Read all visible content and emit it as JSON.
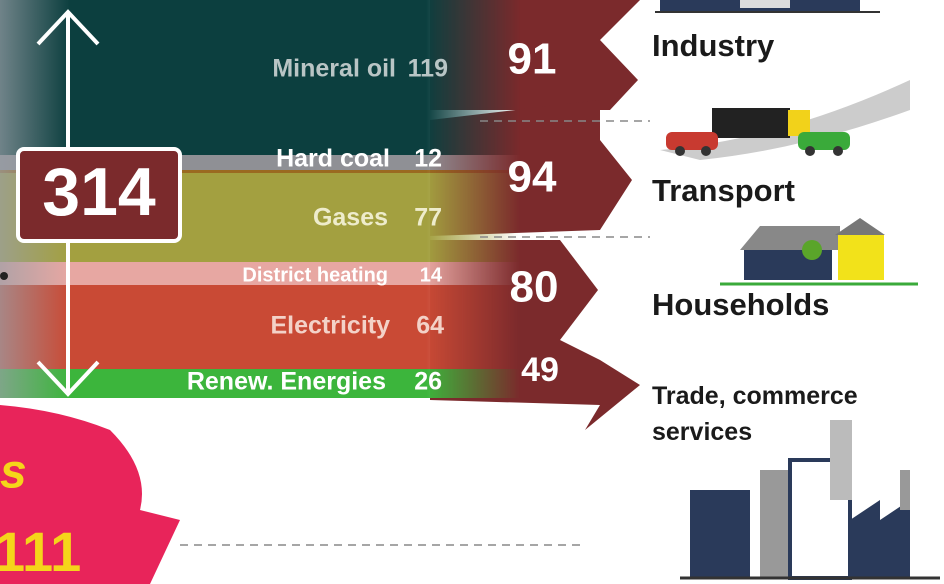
{
  "total": 314,
  "sources": [
    {
      "label": "Mineral oil",
      "value": 119
    },
    {
      "label": "Hard coal",
      "value": 12
    },
    {
      "label": "Gases",
      "value": 77
    },
    {
      "label": "District heating",
      "value": 14
    },
    {
      "label": "Electricity",
      "value": 64
    },
    {
      "label": "Renew. Energies",
      "value": 26
    }
  ],
  "sectors": [
    {
      "value": 91,
      "label": "Industry"
    },
    {
      "value": 94,
      "label": "Transport"
    },
    {
      "value": 80,
      "label": "Households"
    },
    {
      "value": 49,
      "label": "Trade, commerce services"
    }
  ],
  "losses": {
    "label": "s",
    "value": 111
  }
}
